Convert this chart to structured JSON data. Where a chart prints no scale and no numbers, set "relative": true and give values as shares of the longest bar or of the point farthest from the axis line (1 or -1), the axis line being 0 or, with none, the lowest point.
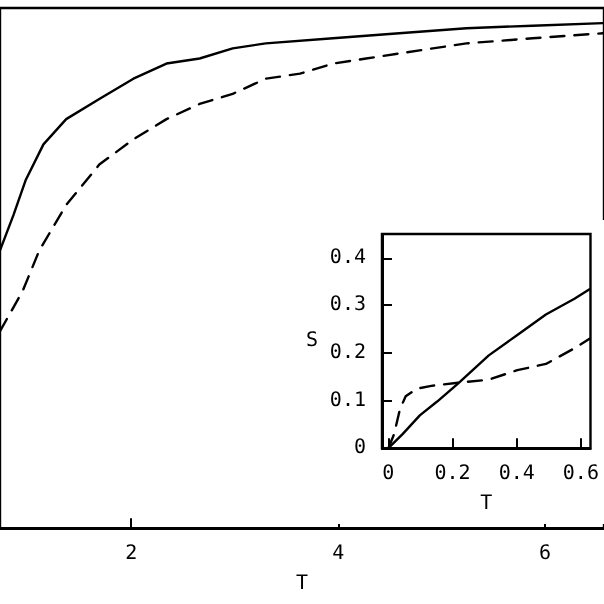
{
  "chart_data": [
    {
      "type": "line",
      "xlabel": "T",
      "relative": true,
      "xlim": [
        0.73,
        6.57
      ],
      "xticks": [
        2,
        4,
        6
      ],
      "tick_labels": "x",
      "grid": false,
      "marker": "none",
      "series": [
        {
          "color": "#000000",
          "line_style": "solid",
          "x": [
            0.73,
            0.86,
            0.98,
            1.15,
            1.37,
            1.69,
            2.02,
            2.34,
            2.66,
            2.98,
            3.3,
            3.95,
            4.59,
            5.24,
            5.88,
            6.56
          ],
          "values": [
            0.55,
            0.62,
            0.69,
            0.76,
            0.81,
            0.85,
            0.89,
            0.92,
            0.93,
            0.95,
            0.96,
            0.97,
            0.98,
            0.99,
            0.995,
            1
          ]
        },
        {
          "color": "#000000",
          "line_style": "dashed",
          "x": [
            0.73,
            0.95,
            1.11,
            1.37,
            1.69,
            2.02,
            2.34,
            2.66,
            2.98,
            3.3,
            3.63,
            3.95,
            4.27,
            4.59,
            5.24,
            5.88,
            6.56
          ],
          "values": [
            0.39,
            0.47,
            0.55,
            0.64,
            0.72,
            0.77,
            0.81,
            0.84,
            0.86,
            0.89,
            0.9,
            0.92,
            0.93,
            0.94,
            0.96,
            0.97,
            0.98
          ]
        }
      ]
    },
    {
      "type": "line",
      "xlabel": "T",
      "ylabel": "S",
      "xlim": [
        -0.02,
        0.63
      ],
      "ylim": [
        0,
        0.45
      ],
      "xticks": [
        0,
        0.2,
        0.4,
        0.6
      ],
      "yticks": [
        0,
        0.1,
        0.2,
        0.3,
        0.4
      ],
      "grid": false,
      "marker": "none",
      "series": [
        {
          "color": "#000000",
          "line_style": "solid",
          "x": [
            0,
            0.045,
            0.098,
            0.152,
            0.216,
            0.313,
            0.402,
            0.491,
            0.58,
            0.627
          ],
          "values": [
            0,
            0.03,
            0.069,
            0.098,
            0.135,
            0.195,
            0.238,
            0.281,
            0.314,
            0.334
          ]
        },
        {
          "color": "#000000",
          "line_style": "dashed",
          "x": [
            0,
            0.018,
            0.036,
            0.054,
            0.089,
            0.134,
            0.223,
            0.313,
            0.402,
            0.491,
            0.58,
            0.627
          ],
          "values": [
            0,
            0.03,
            0.082,
            0.109,
            0.125,
            0.131,
            0.138,
            0.144,
            0.164,
            0.177,
            0.21,
            0.23
          ]
        }
      ]
    }
  ]
}
